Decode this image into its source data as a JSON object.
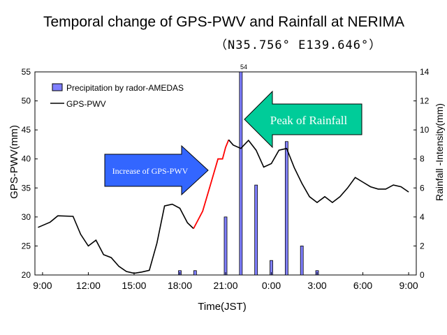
{
  "title": "Temporal change of  GPS-PWV and Rainfall at NERIMA",
  "subtitle": "（N35.756°  E139.646°）",
  "chart_data": {
    "type": "bar+line",
    "xlabel": "Time(JST)",
    "ylabel_left": "GPS-PWV(mm)",
    "ylabel_right": "Rainfall -Intensity(mm)",
    "ylim_left": [
      20,
      55
    ],
    "ylim_right": [
      0,
      14
    ],
    "xlim_hours": [
      8.5,
      33.5
    ],
    "x_ticks": [
      "9:00",
      "12:00",
      "15:00",
      "18:00",
      "21:00",
      "0:00",
      "3:00",
      "6:00",
      "9:00"
    ],
    "y_ticks_left": [
      "55",
      "50",
      "45",
      "40",
      "35",
      "30",
      "25",
      "20"
    ],
    "y_ticks_right": [
      "14",
      "12",
      "10",
      "8",
      "6",
      "4",
      "2",
      "0"
    ],
    "legend": [
      "Precipitation by rador-AMEDAS",
      "GPS-PWV"
    ],
    "bar_top_label": "54",
    "precipitation": [
      {
        "hour": 18.0,
        "value": 0.3
      },
      {
        "hour": 19.0,
        "value": 0.3
      },
      {
        "hour": 21.0,
        "value": 4.0
      },
      {
        "hour": 22.0,
        "value": 14.0
      },
      {
        "hour": 23.0,
        "value": 6.2
      },
      {
        "hour": 24.0,
        "value": 1.0
      },
      {
        "hour": 25.0,
        "value": 9.2
      },
      {
        "hour": 26.0,
        "value": 2.0
      },
      {
        "hour": 27.0,
        "value": 0.3
      }
    ],
    "pwv_series": [
      [
        8.7,
        28.2
      ],
      [
        9.5,
        29.1
      ],
      [
        10.0,
        30.2
      ],
      [
        11.0,
        30.1
      ],
      [
        11.5,
        27.0
      ],
      [
        12.0,
        25.0
      ],
      [
        12.5,
        26.0
      ],
      [
        13.0,
        23.5
      ],
      [
        13.5,
        23.0
      ],
      [
        14.0,
        21.5
      ],
      [
        14.5,
        20.6
      ],
      [
        15.0,
        20.3
      ],
      [
        15.5,
        20.5
      ],
      [
        16.0,
        20.8
      ],
      [
        16.5,
        25.5
      ],
      [
        17.0,
        31.9
      ],
      [
        17.5,
        32.2
      ],
      [
        18.0,
        31.5
      ],
      [
        18.5,
        29.0
      ],
      [
        18.9,
        28.0
      ]
    ],
    "pwv_highlight": [
      [
        18.9,
        28.0
      ],
      [
        19.5,
        31.0
      ],
      [
        20.0,
        35.5
      ],
      [
        20.5,
        40.0
      ],
      [
        20.8,
        40.0
      ],
      [
        21.0,
        42.0
      ],
      [
        21.2,
        43.3
      ]
    ],
    "pwv_series_2": [
      [
        21.2,
        43.3
      ],
      [
        21.5,
        42.4
      ],
      [
        22.0,
        41.8
      ],
      [
        22.5,
        43.2
      ],
      [
        23.0,
        41.5
      ],
      [
        23.5,
        38.6
      ],
      [
        24.0,
        39.2
      ],
      [
        24.5,
        41.5
      ],
      [
        25.0,
        41.8
      ],
      [
        25.5,
        38.5
      ],
      [
        26.0,
        35.8
      ],
      [
        26.5,
        33.5
      ],
      [
        27.0,
        32.5
      ],
      [
        27.5,
        33.5
      ],
      [
        28.0,
        32.5
      ],
      [
        28.5,
        33.5
      ],
      [
        29.0,
        35.0
      ],
      [
        29.5,
        36.8
      ],
      [
        30.0,
        36.0
      ],
      [
        30.5,
        35.2
      ],
      [
        31.0,
        34.8
      ],
      [
        31.5,
        34.8
      ],
      [
        32.0,
        35.5
      ],
      [
        32.5,
        35.2
      ],
      [
        33.0,
        34.3
      ]
    ],
    "annotations": [
      {
        "text": "Peak of Rainfall",
        "color": "#00cc99"
      },
      {
        "text": "Increase of GPS-PWV",
        "color": "#3366ff"
      }
    ],
    "colors": {
      "bar_fill": "#7f7fff",
      "bar_stroke": "#000000",
      "line": "#000000",
      "highlight_line": "#ff0000",
      "peak_arrow": "#00cc99",
      "increase_arrow": "#3366ff"
    }
  }
}
